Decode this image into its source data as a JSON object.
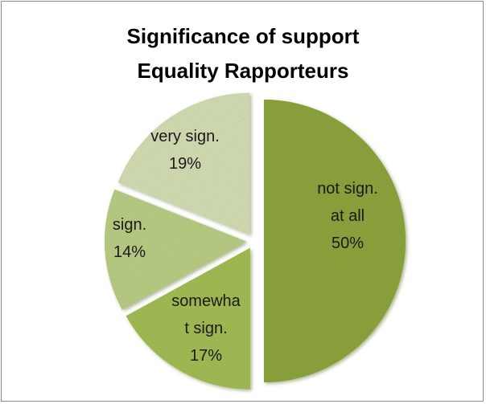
{
  "chart_data": {
    "type": "pie",
    "title_lines": [
      "Significance of support",
      "Equality Rapporteurs"
    ],
    "slices": [
      {
        "label_lines": [
          "not sign.",
          "at all",
          "50%"
        ],
        "value": 50,
        "color": "#8aa33a"
      },
      {
        "label_lines": [
          "somewha",
          "t sign.",
          "17%"
        ],
        "value": 17,
        "color": "#a3be55"
      },
      {
        "label_lines": [
          "sign.",
          "14%"
        ],
        "value": 14,
        "color": "#bcd089"
      },
      {
        "label_lines": [
          "very sign.",
          "19%"
        ],
        "value": 19,
        "color": "#d8e2bb"
      }
    ],
    "legend": "none",
    "exploded": true
  }
}
